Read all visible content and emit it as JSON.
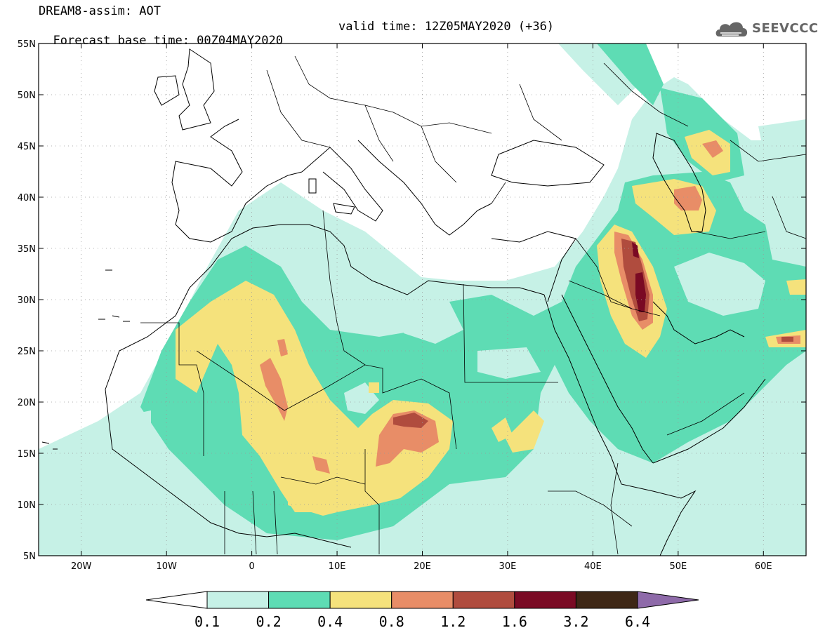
{
  "header": {
    "title_line1": "DREAM8-assim: AOT",
    "title_line2": "Forecast base time: 00Z04MAY2020",
    "valid_time": "valid time: 12Z05MAY2020 (+36)"
  },
  "logo": {
    "text": "SEEVCCC",
    "icon": "cloud-icon"
  },
  "map": {
    "lon_range": [
      -25,
      65
    ],
    "lat_range": [
      5,
      55
    ],
    "lat_labels": [
      "55N",
      "50N",
      "45N",
      "40N",
      "35N",
      "30N",
      "25N",
      "20N",
      "15N",
      "10N",
      "5N"
    ],
    "lat_values": [
      55,
      50,
      45,
      40,
      35,
      30,
      25,
      20,
      15,
      10,
      5
    ],
    "lon_labels": [
      "20W",
      "10W",
      "0",
      "10E",
      "20E",
      "30E",
      "40E",
      "50E",
      "60E"
    ],
    "lon_values": [
      -20,
      -10,
      0,
      10,
      20,
      30,
      40,
      50,
      60
    ]
  },
  "colorbar": {
    "levels": [
      "0.1",
      "0.2",
      "0.4",
      "0.8",
      "1.2",
      "1.6",
      "3.2",
      "6.4"
    ],
    "colors": [
      "#ffffff",
      "#c6f1e6",
      "#5edcb4",
      "#f5e27c",
      "#e88d67",
      "#b04c3e",
      "#7a0a24",
      "#3e2716",
      "#8e6aa9"
    ]
  }
}
